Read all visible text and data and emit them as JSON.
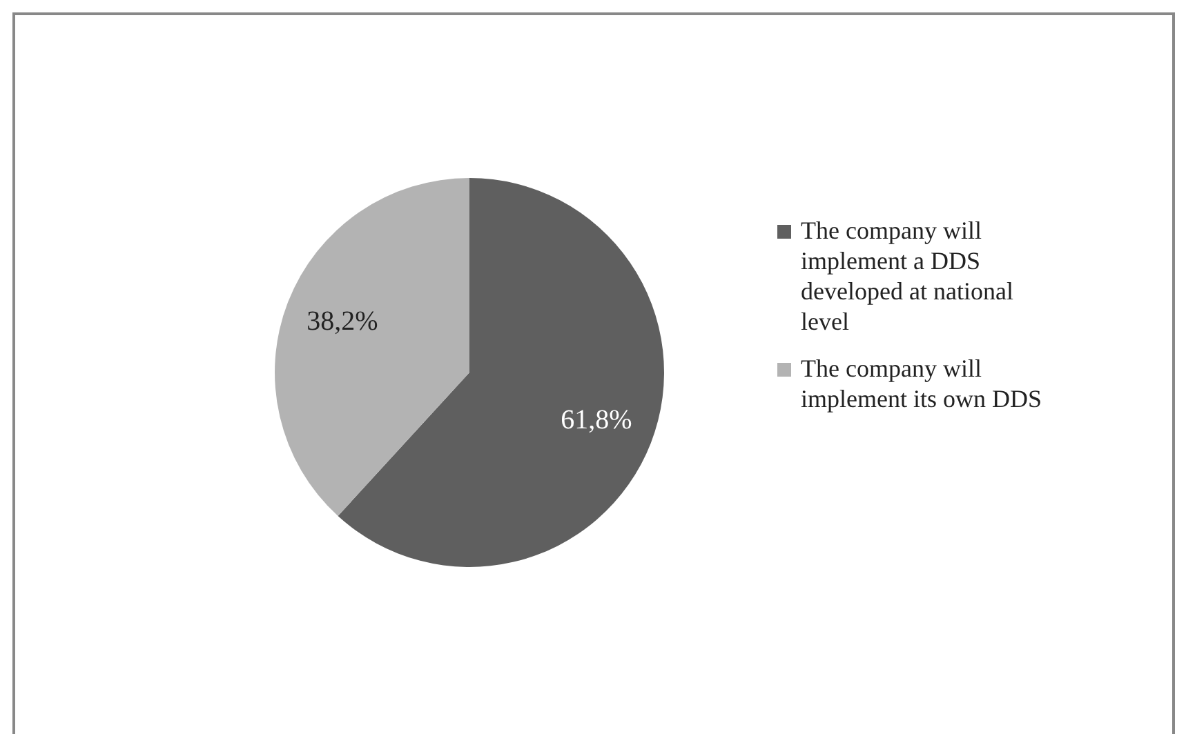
{
  "chart_data": {
    "type": "pie",
    "categories": [
      "The company will implement a DDS developed at national level",
      "The company will implement its own DDS"
    ],
    "values": [
      61.8,
      38.2
    ],
    "colors": [
      "#5f5f5f",
      "#b3b3b3"
    ],
    "value_labels": [
      "61,8%",
      "38,2%"
    ],
    "legend": "right"
  }
}
